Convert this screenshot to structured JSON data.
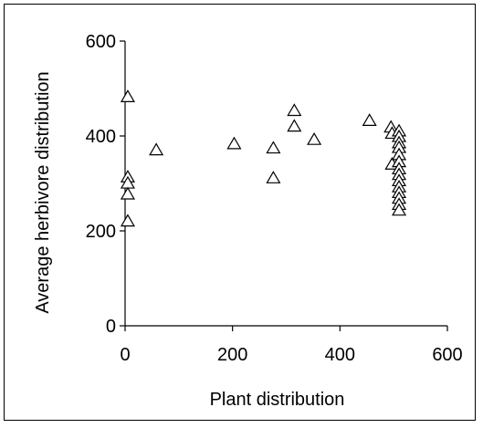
{
  "chart_data": {
    "type": "scatter",
    "title": "",
    "xlabel": "Plant distribution",
    "ylabel": "Average herbivore distribution",
    "xlim": [
      0,
      600
    ],
    "ylim": [
      0,
      600
    ],
    "x_ticks": [
      "0",
      "200",
      "400",
      "600"
    ],
    "y_ticks": [
      "0",
      "200",
      "400",
      "600"
    ],
    "grid": false,
    "legend": "none",
    "marker": "open-triangle",
    "series": [
      {
        "points": [
          {
            "x": 5,
            "y": 482
          },
          {
            "x": 5,
            "y": 313
          },
          {
            "x": 5,
            "y": 300
          },
          {
            "x": 5,
            "y": 277
          },
          {
            "x": 5,
            "y": 220
          },
          {
            "x": 58,
            "y": 370
          },
          {
            "x": 203,
            "y": 383
          },
          {
            "x": 276,
            "y": 374
          },
          {
            "x": 276,
            "y": 311
          },
          {
            "x": 315,
            "y": 453
          },
          {
            "x": 315,
            "y": 420
          },
          {
            "x": 352,
            "y": 392
          },
          {
            "x": 455,
            "y": 432
          },
          {
            "x": 495,
            "y": 418
          },
          {
            "x": 497,
            "y": 405
          },
          {
            "x": 497,
            "y": 340
          },
          {
            "x": 510,
            "y": 410
          },
          {
            "x": 510,
            "y": 398
          },
          {
            "x": 510,
            "y": 385
          },
          {
            "x": 510,
            "y": 375
          },
          {
            "x": 510,
            "y": 360
          },
          {
            "x": 510,
            "y": 345
          },
          {
            "x": 510,
            "y": 330
          },
          {
            "x": 510,
            "y": 318
          },
          {
            "x": 510,
            "y": 305
          },
          {
            "x": 510,
            "y": 292
          },
          {
            "x": 510,
            "y": 280
          },
          {
            "x": 510,
            "y": 268
          },
          {
            "x": 510,
            "y": 255
          },
          {
            "x": 510,
            "y": 243
          }
        ]
      }
    ]
  }
}
